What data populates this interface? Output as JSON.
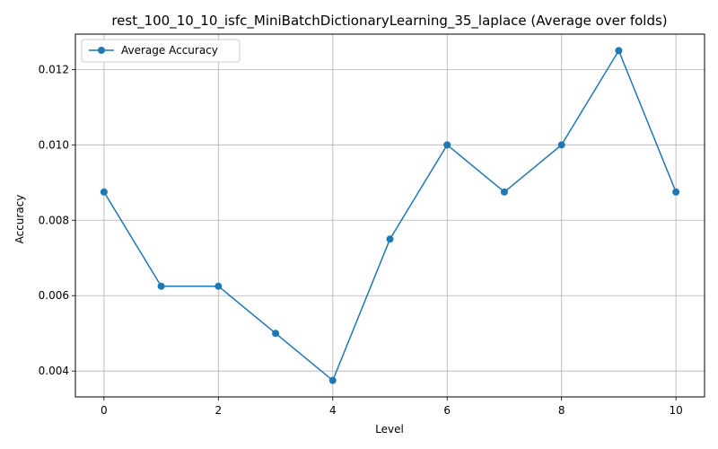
{
  "chart_data": {
    "type": "line",
    "title": "rest_100_10_10_isfc_MiniBatchDictionaryLearning_35_laplace (Average over folds)",
    "xlabel": "Level",
    "ylabel": "Accuracy",
    "x": [
      0,
      1,
      2,
      3,
      4,
      5,
      6,
      7,
      8,
      9,
      10
    ],
    "series": [
      {
        "name": "Average Accuracy",
        "values": [
          0.00875,
          0.00625,
          0.00625,
          0.005,
          0.00375,
          0.0075,
          0.01,
          0.00875,
          0.01,
          0.0125,
          0.00875
        ],
        "color": "#1f77b4"
      }
    ],
    "xticks": [
      0,
      2,
      4,
      6,
      8,
      10
    ],
    "xtick_labels": [
      "0",
      "2",
      "4",
      "6",
      "8",
      "10"
    ],
    "yticks": [
      0.004,
      0.006,
      0.008,
      0.01,
      0.012
    ],
    "ytick_labels": [
      "0.004",
      "0.006",
      "0.008",
      "0.010",
      "0.012"
    ],
    "xlim": [
      -0.5,
      10.5
    ],
    "ylim": [
      0.003313,
      0.012938
    ],
    "grid": true,
    "legend": "top-left"
  }
}
